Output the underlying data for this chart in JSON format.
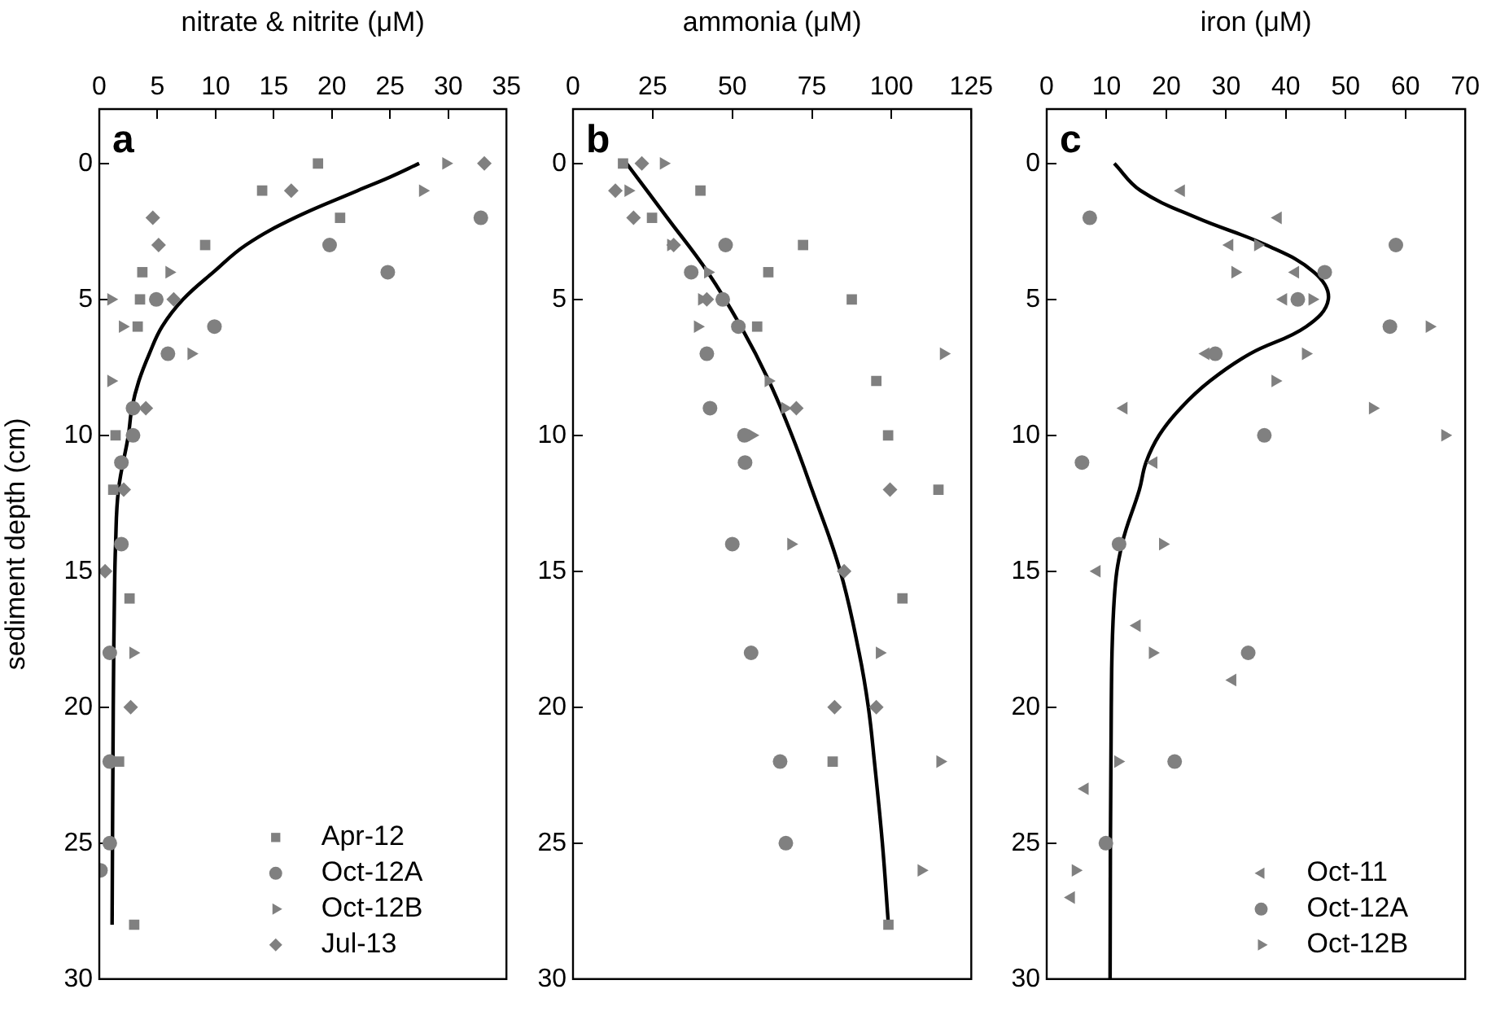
{
  "chart_data": [
    {
      "type": "scatter",
      "xlabel": "nitrate & nitrite (μM)",
      "ylabel": "sediment depth (cm)",
      "xlim": [
        0,
        35
      ],
      "xticks": [
        0,
        5,
        10,
        15,
        20,
        25,
        30,
        35
      ],
      "ylim": [
        30,
        -2
      ],
      "yticks": [
        0,
        5,
        10,
        15,
        20,
        25,
        30
      ],
      "legend": "bottom",
      "annotations": [
        "a"
      ],
      "series": [
        {
          "name": "Apr-12",
          "color": "#808080",
          "marker": "square",
          "x": [
            18.8,
            14,
            20.7,
            9.1,
            3.7,
            3.5,
            3.3,
            1.4,
            1.2,
            2.6,
            1.7,
            3.0
          ],
          "values": [
            0,
            1,
            2,
            3,
            4,
            5,
            6,
            10,
            12,
            16,
            22,
            28
          ]
        },
        {
          "name": "Oct-12A",
          "color": "#808080",
          "marker": "circle",
          "x": [
            32.8,
            19.8,
            24.8,
            4.9,
            9.9,
            5.9,
            2.9,
            2.9,
            1.9,
            1.9,
            0.9,
            0.9,
            0.9,
            0.1
          ],
          "values": [
            2,
            3,
            4,
            5,
            6,
            7,
            9,
            10,
            11,
            14,
            18,
            22,
            25,
            26
          ]
        },
        {
          "name": "Oct-12B",
          "color": "#808080",
          "marker": "triangle",
          "x": [
            29.8,
            27.8,
            6.0,
            1.0,
            2.0,
            7.9,
            1.0,
            2.9
          ],
          "values": [
            0,
            1,
            4,
            5,
            6,
            7,
            8,
            18
          ]
        },
        {
          "name": "Jul-13",
          "color": "#808080",
          "marker": "diamond",
          "x": [
            33.1,
            16.5,
            4.6,
            5.1,
            6.4,
            4.0,
            2.1,
            0.5,
            2.7
          ],
          "values": [
            0,
            1,
            2,
            3,
            5,
            9,
            12,
            15,
            20
          ]
        },
        {
          "type": "line",
          "color": "#000000",
          "marker": "none",
          "x": [
            27.5,
            25,
            22.2,
            16.8,
            12.6,
            9.8,
            7.2,
            5.4,
            4.3,
            3.4,
            2.8,
            2.5,
            1.65,
            1.4,
            1.3,
            1.2,
            1.1
          ],
          "values": [
            0,
            0.5,
            1,
            2,
            3,
            4,
            5,
            6,
            7,
            8,
            9,
            10,
            12,
            14,
            16,
            20,
            28
          ]
        }
      ]
    },
    {
      "type": "scatter",
      "xlabel": "ammonia (μM)",
      "xlim": [
        0,
        125
      ],
      "xticks": [
        0,
        25,
        50,
        75,
        100,
        125
      ],
      "ylim": [
        30,
        -2
      ],
      "yticks": [
        0,
        5,
        10,
        15,
        20,
        25,
        30
      ],
      "annotations": [
        "b"
      ],
      "series": [
        {
          "color": "#808080",
          "marker": "square",
          "x": [
            15.7,
            40,
            24.8,
            72.2,
            61.3,
            87.5,
            57.8,
            95.2,
            98.9,
            114.7,
            103.4,
            81.5,
            99
          ],
          "values": [
            0,
            1,
            2,
            3,
            4,
            5,
            6,
            8,
            10,
            12,
            16,
            22,
            28
          ]
        },
        {
          "color": "#808080",
          "marker": "circle",
          "x": [
            47.9,
            37.1,
            47,
            51.9,
            42,
            43,
            53.8,
            54,
            50,
            55.9,
            65,
            66.8
          ],
          "values": [
            3,
            4,
            5,
            6,
            7,
            9,
            10,
            11,
            14,
            18,
            22,
            25
          ]
        },
        {
          "color": "#808080",
          "marker": "triangle",
          "x": [
            28.4,
            17.3,
            30.7,
            42.3,
            40.4,
            39.1,
            116.3,
            61.3,
            66.5,
            56.2,
            68.4,
            96.2,
            115.2,
            109.3
          ],
          "values": [
            0,
            1,
            3,
            4,
            5,
            6,
            7,
            8,
            9,
            10,
            14,
            18,
            22,
            26
          ]
        },
        {
          "color": "#808080",
          "marker": "diamond",
          "x": [
            21.6,
            13.3,
            19,
            31.6,
            42,
            70.1,
            99.5,
            85.1,
            82.1,
            95.2
          ],
          "values": [
            0,
            1,
            2,
            3,
            5,
            9,
            12,
            15,
            20,
            20
          ]
        },
        {
          "type": "line",
          "color": "#000000",
          "marker": "none",
          "x": [
            16.8,
            29.6,
            42.3,
            52.7,
            61.5,
            68.7,
            75,
            83.9,
            89.8,
            92.7,
            94.6,
            97.1,
            99
          ],
          "values": [
            0,
            2,
            4,
            6,
            8,
            10,
            12,
            15,
            18,
            20,
            22,
            25,
            28
          ]
        }
      ]
    },
    {
      "type": "scatter",
      "xlabel": "iron (μM)",
      "xlim": [
        0,
        70
      ],
      "xticks": [
        0,
        10,
        20,
        30,
        40,
        50,
        60,
        70
      ],
      "ylim": [
        30,
        -2
      ],
      "yticks": [
        0,
        5,
        10,
        15,
        20,
        25,
        30
      ],
      "legend": "bottom right",
      "annotations": [
        "c"
      ],
      "series": [
        {
          "name": "Oct-11",
          "color": "#808080",
          "marker": "triangle-left",
          "x": [
            22.5,
            38.7,
            30.6,
            41.6,
            39.6,
            26.6,
            12.9,
            17.9,
            8.4,
            15.1,
            31.1,
            6.4,
            4.1
          ],
          "values": [
            1,
            2,
            3,
            4,
            5,
            7,
            9,
            11,
            15,
            17,
            19,
            23,
            27
          ]
        },
        {
          "name": "Oct-12A",
          "color": "#808080",
          "marker": "circle",
          "x": [
            7.2,
            58.4,
            46.5,
            42,
            57.4,
            28.2,
            36.4,
            5.9,
            12.1,
            33.7,
            21.4,
            9.9
          ],
          "values": [
            2,
            3,
            4,
            5,
            6,
            7,
            10,
            11,
            14,
            18,
            22,
            25
          ]
        },
        {
          "name": "Oct-12B",
          "color": "#808080",
          "marker": "triangle",
          "x": [
            35.3,
            31.5,
            44.4,
            64,
            43.3,
            38.2,
            54.5,
            66.6,
            19.4,
            17.7,
            11.9,
            4.8
          ],
          "values": [
            3,
            4,
            5,
            6,
            7,
            8,
            9,
            10,
            14,
            18,
            22,
            26
          ]
        },
        {
          "type": "line",
          "color": "#000000",
          "marker": "none",
          "x": [
            11.3,
            15.7,
            25.1,
            36.7,
            44.7,
            47.1,
            43.4,
            34,
            27.3,
            22.4,
            18.8,
            16.6,
            15.5,
            12.6,
            11.3,
            10.8,
            10.6
          ],
          "values": [
            0,
            1,
            2,
            3,
            4,
            5,
            6,
            7,
            8,
            9,
            10,
            11,
            12,
            14,
            16,
            20,
            30
          ]
        }
      ]
    }
  ]
}
